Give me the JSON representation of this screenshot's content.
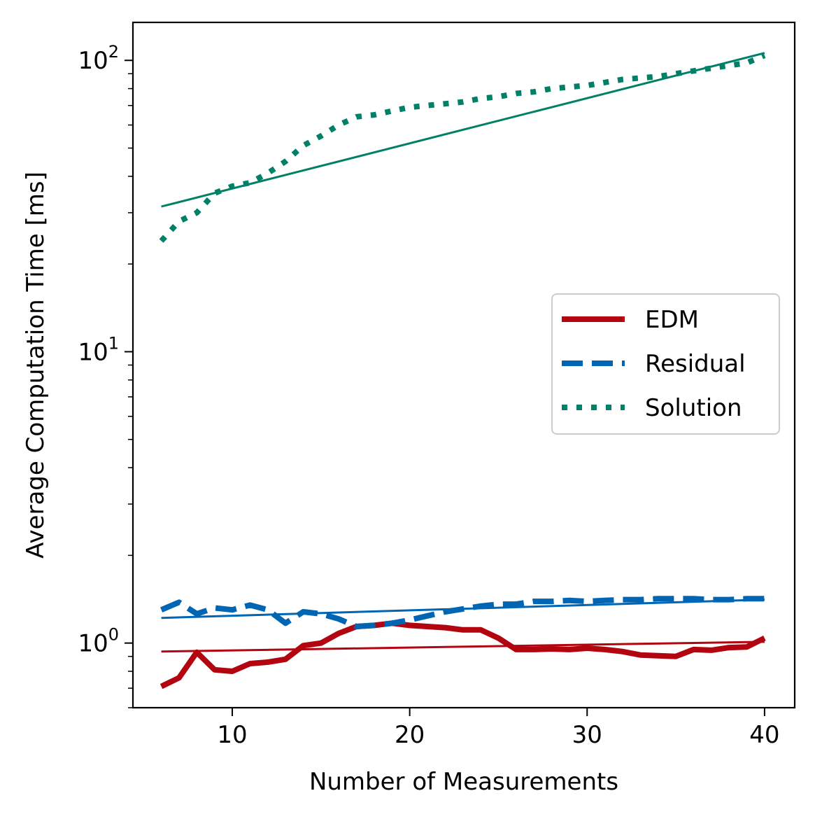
{
  "chart_data": {
    "type": "line",
    "title": "",
    "xlabel": "Number of Measurements",
    "ylabel": "Average Computation Time [ms]",
    "xlim": [
      4.4,
      41.7
    ],
    "ylim": [
      0.6,
      135
    ],
    "yscale": "log",
    "grid": false,
    "legend_position": "center-right",
    "x_ticks": [
      10,
      20,
      30,
      40
    ],
    "x_tick_labels": [
      "10",
      "20",
      "30",
      "40"
    ],
    "y_ticks": [
      1,
      10,
      100
    ],
    "y_tick_labels": [
      {
        "base": "10",
        "exp": "0"
      },
      {
        "base": "10",
        "exp": "1"
      },
      {
        "base": "10",
        "exp": "2"
      }
    ],
    "x": [
      6,
      7,
      8,
      9,
      10,
      11,
      12,
      13,
      14,
      15,
      16,
      17,
      18,
      19,
      20,
      21,
      22,
      23,
      24,
      25,
      26,
      27,
      28,
      29,
      30,
      31,
      32,
      33,
      34,
      35,
      36,
      37,
      38,
      39,
      40
    ],
    "series": [
      {
        "name": "EDM",
        "color": "#b30510",
        "line_style": "solid",
        "values": [
          0.71,
          0.76,
          0.93,
          0.81,
          0.8,
          0.85,
          0.86,
          0.88,
          0.98,
          1.0,
          1.08,
          1.14,
          1.15,
          1.17,
          1.15,
          1.14,
          1.13,
          1.11,
          1.11,
          1.04,
          0.95,
          0.95,
          0.955,
          0.95,
          0.96,
          0.95,
          0.935,
          0.91,
          0.905,
          0.9,
          0.95,
          0.945,
          0.965,
          0.97,
          1.04
        ],
        "trend": {
          "x": [
            6,
            40
          ],
          "y": [
            0.935,
            1.01
          ]
        }
      },
      {
        "name": "Residual",
        "color": "#0066b3",
        "line_style": "dashed",
        "values": [
          1.3,
          1.38,
          1.26,
          1.32,
          1.3,
          1.35,
          1.3,
          1.17,
          1.28,
          1.26,
          1.21,
          1.14,
          1.15,
          1.17,
          1.2,
          1.24,
          1.28,
          1.31,
          1.34,
          1.36,
          1.36,
          1.39,
          1.39,
          1.4,
          1.39,
          1.4,
          1.41,
          1.41,
          1.42,
          1.42,
          1.42,
          1.41,
          1.41,
          1.42,
          1.42
        ],
        "trend": {
          "x": [
            6,
            40
          ],
          "y": [
            1.22,
            1.41
          ]
        }
      },
      {
        "name": "Solution",
        "color": "#008066",
        "line_style": "dotted",
        "values": [
          24,
          28,
          30,
          35,
          37,
          38,
          41,
          45,
          51,
          55,
          60,
          64,
          65,
          67,
          69,
          70,
          71,
          72,
          74,
          75,
          77,
          78,
          80,
          81,
          82,
          84,
          86,
          87,
          88,
          90,
          92,
          94,
          96,
          98,
          104
        ],
        "trend": {
          "x": [
            6,
            40
          ],
          "y": [
            31.5,
            106
          ]
        }
      }
    ]
  }
}
